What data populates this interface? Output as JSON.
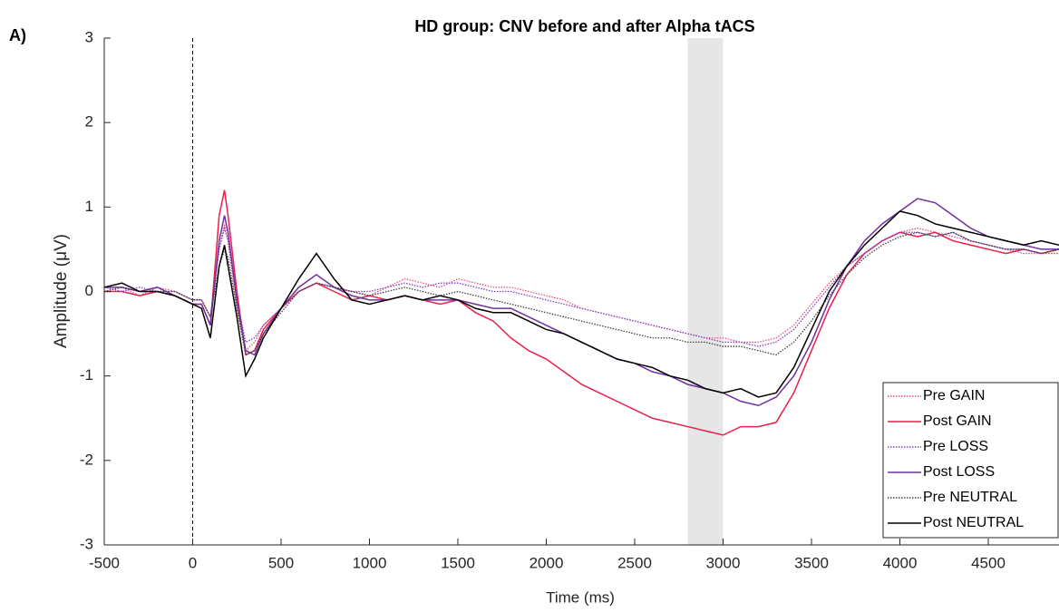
{
  "chart_data": {
    "type": "line",
    "panel_label": "A)",
    "title": "HD group: CNV before and after Alpha tACS",
    "x_label": "Time (ms)",
    "y_label": "Amplitude (μV)",
    "xlim": [
      -500,
      4900
    ],
    "ylim": [
      -3,
      3
    ],
    "xticks": [
      -500,
      0,
      500,
      1000,
      1500,
      2000,
      2500,
      3000,
      3500,
      4000,
      4500
    ],
    "yticks": [
      -3,
      -2,
      -1,
      0,
      1,
      2,
      3
    ],
    "shaded_region": [
      2800,
      3000
    ],
    "shaded_color": "#e6e6e6",
    "vline": 0,
    "legend": "lower right",
    "x": [
      -500,
      -400,
      -300,
      -200,
      -100,
      0,
      50,
      100,
      150,
      180,
      200,
      250,
      300,
      350,
      400,
      500,
      600,
      700,
      800,
      900,
      1000,
      1100,
      1200,
      1300,
      1400,
      1500,
      1600,
      1700,
      1800,
      1900,
      2000,
      2100,
      2200,
      2300,
      2400,
      2500,
      2600,
      2700,
      2800,
      2900,
      3000,
      3100,
      3200,
      3300,
      3400,
      3500,
      3600,
      3700,
      3800,
      3900,
      4000,
      4100,
      4200,
      4300,
      4400,
      4500,
      4600,
      4700,
      4800,
      4900
    ],
    "series": [
      {
        "name": "Pre GAIN",
        "color": "#f0507a",
        "style": "dotted",
        "values": [
          0,
          0.05,
          -0.05,
          0.05,
          0,
          -0.1,
          -0.1,
          -0.3,
          0.5,
          0.8,
          0.6,
          -0.2,
          -0.7,
          -0.6,
          -0.4,
          -0.2,
          0,
          0.1,
          0.05,
          0,
          -0.05,
          0.05,
          0.15,
          0.1,
          0.05,
          0.15,
          0.1,
          0.05,
          0.05,
          0,
          -0.05,
          -0.1,
          -0.2,
          -0.25,
          -0.3,
          -0.35,
          -0.4,
          -0.45,
          -0.5,
          -0.55,
          -0.55,
          -0.6,
          -0.6,
          -0.55,
          -0.4,
          -0.15,
          0.1,
          0.3,
          0.45,
          0.6,
          0.7,
          0.75,
          0.7,
          0.65,
          0.6,
          0.55,
          0.5,
          0.45,
          0.45,
          0.5
        ]
      },
      {
        "name": "Post GAIN",
        "color": "#e8204a",
        "style": "solid",
        "values": [
          0,
          0,
          -0.05,
          0,
          -0.05,
          -0.15,
          -0.15,
          -0.4,
          0.9,
          1.2,
          0.9,
          0,
          -0.75,
          -0.7,
          -0.45,
          -0.2,
          0,
          0.1,
          0,
          -0.1,
          -0.05,
          -0.1,
          -0.05,
          -0.1,
          -0.15,
          -0.1,
          -0.25,
          -0.35,
          -0.55,
          -0.7,
          -0.8,
          -0.95,
          -1.1,
          -1.2,
          -1.3,
          -1.4,
          -1.5,
          -1.55,
          -1.6,
          -1.65,
          -1.7,
          -1.6,
          -1.6,
          -1.55,
          -1.2,
          -0.7,
          -0.2,
          0.2,
          0.45,
          0.6,
          0.7,
          0.65,
          0.7,
          0.6,
          0.55,
          0.5,
          0.45,
          0.5,
          0.45,
          0.5
        ]
      },
      {
        "name": "Pre LOSS",
        "color": "#8040c8",
        "style": "dotted",
        "values": [
          0.05,
          0,
          0.05,
          0,
          0,
          -0.1,
          -0.1,
          -0.3,
          0.5,
          0.75,
          0.6,
          -0.1,
          -0.6,
          -0.55,
          -0.4,
          -0.2,
          0,
          0.1,
          0.05,
          0,
          0,
          0.05,
          0.1,
          0.05,
          0.1,
          0.1,
          0.05,
          0,
          0,
          -0.05,
          -0.1,
          -0.15,
          -0.2,
          -0.25,
          -0.3,
          -0.35,
          -0.4,
          -0.45,
          -0.5,
          -0.55,
          -0.6,
          -0.6,
          -0.65,
          -0.6,
          -0.45,
          -0.2,
          0.05,
          0.3,
          0.45,
          0.6,
          0.7,
          0.7,
          0.65,
          0.7,
          0.6,
          0.55,
          0.5,
          0.5,
          0.45,
          0.45
        ]
      },
      {
        "name": "Post LOSS",
        "color": "#7030a0",
        "style": "solid",
        "values": [
          0.05,
          0.05,
          0,
          0.05,
          -0.05,
          -0.15,
          -0.15,
          -0.4,
          0.6,
          0.9,
          0.7,
          -0.1,
          -0.7,
          -0.75,
          -0.5,
          -0.2,
          0.05,
          0.2,
          0.05,
          -0.05,
          -0.1,
          -0.1,
          -0.05,
          -0.1,
          -0.1,
          -0.1,
          -0.15,
          -0.2,
          -0.2,
          -0.3,
          -0.4,
          -0.5,
          -0.6,
          -0.7,
          -0.8,
          -0.85,
          -0.95,
          -1.0,
          -1.1,
          -1.15,
          -1.2,
          -1.3,
          -1.35,
          -1.25,
          -1.0,
          -0.6,
          -0.1,
          0.3,
          0.6,
          0.8,
          0.95,
          1.1,
          1.05,
          0.9,
          0.75,
          0.65,
          0.6,
          0.55,
          0.5,
          0.5
        ]
      },
      {
        "name": "Pre NEUTRAL",
        "color": "#404040",
        "style": "dotted",
        "values": [
          0,
          0.05,
          0,
          0,
          0,
          -0.1,
          -0.1,
          -0.3,
          0.3,
          0.5,
          0.4,
          -0.2,
          -0.75,
          -0.7,
          -0.5,
          -0.25,
          0,
          0.1,
          0.05,
          0,
          -0.05,
          0,
          0.05,
          0,
          -0.05,
          0,
          -0.05,
          -0.1,
          -0.15,
          -0.2,
          -0.25,
          -0.3,
          -0.35,
          -0.4,
          -0.45,
          -0.5,
          -0.55,
          -0.55,
          -0.6,
          -0.6,
          -0.65,
          -0.65,
          -0.7,
          -0.75,
          -0.6,
          -0.35,
          -0.05,
          0.2,
          0.4,
          0.55,
          0.65,
          0.7,
          0.65,
          0.7,
          0.6,
          0.55,
          0.5,
          0.5,
          0.45,
          0.5
        ]
      },
      {
        "name": "Post NEUTRAL",
        "color": "#000000",
        "style": "solid",
        "values": [
          0.05,
          0.1,
          0,
          0,
          -0.05,
          -0.15,
          -0.2,
          -0.55,
          0.3,
          0.55,
          0.3,
          -0.3,
          -1.0,
          -0.8,
          -0.55,
          -0.2,
          0.15,
          0.45,
          0.15,
          -0.1,
          -0.15,
          -0.1,
          -0.05,
          -0.1,
          -0.05,
          -0.1,
          -0.2,
          -0.25,
          -0.25,
          -0.35,
          -0.45,
          -0.5,
          -0.6,
          -0.7,
          -0.8,
          -0.85,
          -0.9,
          -1.0,
          -1.05,
          -1.15,
          -1.2,
          -1.15,
          -1.25,
          -1.2,
          -0.9,
          -0.45,
          0,
          0.3,
          0.55,
          0.75,
          0.95,
          0.9,
          0.8,
          0.75,
          0.7,
          0.65,
          0.6,
          0.55,
          0.6,
          0.55
        ]
      }
    ]
  }
}
